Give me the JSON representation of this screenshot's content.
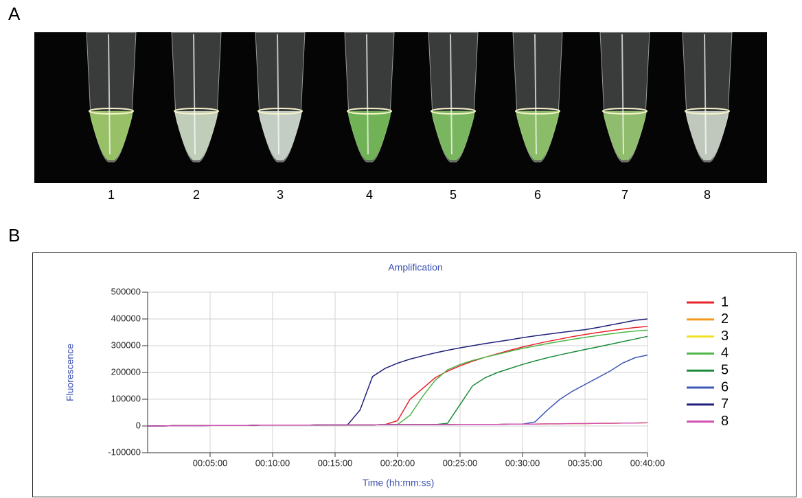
{
  "panel_a_label": "A",
  "panel_b_label": "B",
  "tube_labels": [
    "1",
    "2",
    "3",
    "4",
    "5",
    "6",
    "7",
    "8"
  ],
  "chart_data": {
    "type": "line",
    "title": "Amplification",
    "x_label": "Time (hh:mm:ss)",
    "y_label": "Fluorescence",
    "x": [
      0,
      1,
      2,
      3,
      4,
      5,
      6,
      7,
      8,
      9,
      10,
      11,
      12,
      13,
      14,
      15,
      16,
      17,
      18,
      19,
      20,
      21,
      22,
      23,
      24,
      25,
      26,
      27,
      28,
      29,
      30,
      31,
      32,
      33,
      34,
      35,
      36,
      37,
      38,
      39,
      40
    ],
    "xlim": [
      0,
      40
    ],
    "xticks": [
      {
        "value": 5,
        "label": "00:05:00"
      },
      {
        "value": 10,
        "label": "00:10:00"
      },
      {
        "value": 15,
        "label": "00:15:00"
      },
      {
        "value": 20,
        "label": "00:20:00"
      },
      {
        "value": 25,
        "label": "00:25:00"
      },
      {
        "value": 30,
        "label": "00:30:00"
      },
      {
        "value": 35,
        "label": "00:35:00"
      },
      {
        "value": 40,
        "label": "00:40:00"
      }
    ],
    "ylim": [
      -100000,
      500000
    ],
    "yticks": [
      -100000,
      0,
      100000,
      200000,
      300000,
      400000,
      500000
    ],
    "grid": true,
    "legend": "right",
    "series": [
      {
        "name": "1",
        "color": "#e8202a",
        "values": [
          0,
          0,
          1000,
          1000,
          1000,
          2000,
          2000,
          2000,
          2000,
          3000,
          3000,
          3000,
          3000,
          3000,
          4000,
          4000,
          4000,
          4000,
          4000,
          5000,
          20000,
          100000,
          140000,
          180000,
          205000,
          225000,
          242000,
          257000,
          270000,
          283000,
          295000,
          306000,
          316000,
          325000,
          334000,
          342000,
          349000,
          356000,
          362000,
          368000,
          372000
        ]
      },
      {
        "name": "2",
        "color": "#f39a1e",
        "values": [
          0,
          0,
          1000,
          1000,
          1000,
          2000,
          2000,
          2000,
          2000,
          3000,
          3000,
          3000,
          3000,
          3000,
          4000,
          4000,
          4000,
          4000,
          4000,
          5000,
          5000,
          5000,
          5000,
          5000,
          5000,
          6000,
          6000,
          6000,
          6000,
          7000,
          7000,
          7000,
          8000,
          8000,
          9000,
          9000,
          10000,
          10000,
          11000,
          11000,
          12000
        ]
      },
      {
        "name": "3",
        "color": "#f0e020",
        "values": [
          0,
          0,
          1000,
          1000,
          1000,
          2000,
          2000,
          2000,
          2000,
          3000,
          3000,
          3000,
          3000,
          3000,
          4000,
          4000,
          4000,
          4000,
          4000,
          5000,
          5000,
          5000,
          5000,
          5000,
          5000,
          6000,
          6000,
          6000,
          6000,
          7000,
          7000,
          7000,
          8000,
          8000,
          9000,
          9000,
          10000,
          10000,
          11000,
          11000,
          12000
        ]
      },
      {
        "name": "4",
        "color": "#4cb648",
        "values": [
          0,
          0,
          1000,
          1000,
          1000,
          2000,
          2000,
          2000,
          2000,
          3000,
          3000,
          3000,
          3000,
          3000,
          4000,
          4000,
          4000,
          4000,
          4000,
          5000,
          5000,
          40000,
          110000,
          170000,
          210000,
          230000,
          245000,
          257000,
          268000,
          279000,
          290000,
          299000,
          308000,
          316000,
          324000,
          331000,
          338000,
          344000,
          350000,
          355000,
          358000
        ]
      },
      {
        "name": "5",
        "color": "#1a8a3a",
        "values": [
          0,
          0,
          1000,
          1000,
          1000,
          2000,
          2000,
          2000,
          2000,
          3000,
          3000,
          3000,
          3000,
          3000,
          4000,
          4000,
          4000,
          4000,
          4000,
          5000,
          5000,
          5000,
          5000,
          5000,
          10000,
          80000,
          150000,
          180000,
          200000,
          215000,
          230000,
          243000,
          255000,
          266000,
          276000,
          286000,
          295000,
          305000,
          315000,
          325000,
          335000
        ]
      },
      {
        "name": "6",
        "color": "#3b57b8",
        "values": [
          0,
          0,
          1000,
          1000,
          1000,
          2000,
          2000,
          2000,
          2000,
          3000,
          3000,
          3000,
          3000,
          3000,
          4000,
          4000,
          4000,
          4000,
          4000,
          5000,
          5000,
          5000,
          5000,
          5000,
          5000,
          6000,
          6000,
          6000,
          6000,
          7000,
          7000,
          15000,
          60000,
          100000,
          130000,
          155000,
          180000,
          205000,
          235000,
          255000,
          265000
        ]
      },
      {
        "name": "7",
        "color": "#1e1f7a",
        "values": [
          0,
          0,
          1000,
          1000,
          1000,
          2000,
          2000,
          2000,
          2000,
          3000,
          3000,
          3000,
          3000,
          3000,
          4000,
          4000,
          4000,
          60000,
          185000,
          215000,
          235000,
          250000,
          262000,
          273000,
          283000,
          292000,
          300000,
          308000,
          315000,
          322000,
          330000,
          337000,
          343000,
          349000,
          355000,
          360000,
          368000,
          377000,
          386000,
          395000,
          400000
        ]
      },
      {
        "name": "8",
        "color": "#d24fb0",
        "values": [
          0,
          0,
          1000,
          1000,
          1000,
          2000,
          2000,
          2000,
          2000,
          3000,
          3000,
          3000,
          3000,
          3000,
          4000,
          4000,
          4000,
          4000,
          4000,
          5000,
          5000,
          5000,
          5000,
          5000,
          5000,
          6000,
          6000,
          6000,
          6000,
          7000,
          7000,
          7000,
          8000,
          8000,
          9000,
          9000,
          10000,
          10000,
          11000,
          11000,
          12000
        ]
      }
    ]
  }
}
